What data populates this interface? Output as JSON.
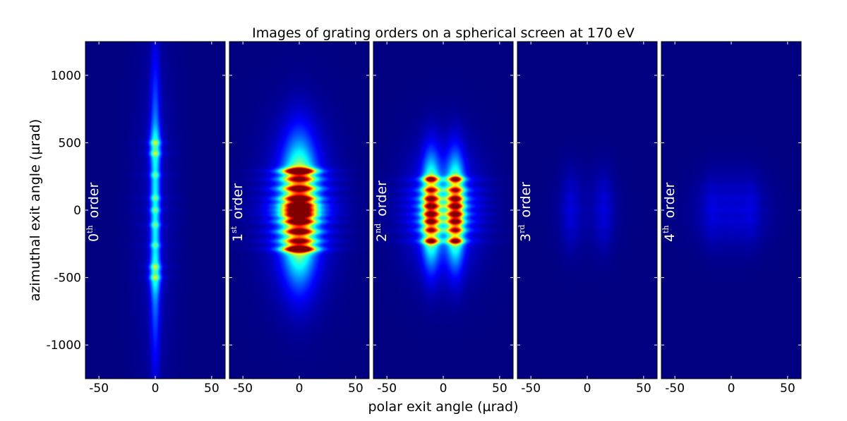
{
  "chart_data": {
    "type": "heatmap",
    "title": "Images of grating orders on a spherical screen at 170 eV",
    "xlabel": "polar exit angle (µrad)",
    "ylabel": "azimuthal exit angle (µrad)",
    "xlim": [
      -62,
      62
    ],
    "ylim": [
      -1250,
      1250
    ],
    "x_ticks": [
      "-50",
      "0",
      "50"
    ],
    "x_tick_values": [
      -50,
      0,
      50
    ],
    "y_ticks": [
      "1000",
      "500",
      "0",
      "-500",
      "-1000"
    ],
    "y_tick_values": [
      1000,
      500,
      0,
      -500,
      -1000
    ],
    "colormap": "jet",
    "background_color": "#00007f",
    "panels": [
      {
        "order_num": "0",
        "order_sup": "th",
        "order_word": "order",
        "spots": [
          {
            "x": 0,
            "y": 0,
            "wx": 3,
            "wy": 700,
            "v": 0.33
          },
          {
            "x": 0,
            "y": 480,
            "wx": 4,
            "wy": 90,
            "v": 0.14
          },
          {
            "x": 0,
            "y": -480,
            "wx": 4,
            "wy": 90,
            "v": 0.14
          },
          {
            "x": 0,
            "y": 0,
            "wx": 14,
            "wy": 900,
            "v": 0.05
          }
        ],
        "stripes_y": [
          -500,
          -420,
          -260,
          -110,
          0,
          90,
          260,
          420,
          500
        ],
        "stripe_v": 0.06
      },
      {
        "order_num": "1",
        "order_sup": "st",
        "order_word": "order",
        "spots": [
          {
            "x": 0,
            "y": 0,
            "wx": 9,
            "wy": 310,
            "v": 0.62
          },
          {
            "x": 0,
            "y": 0,
            "wx": 16,
            "wy": 360,
            "v": 0.18
          },
          {
            "x": 0,
            "y": 290,
            "wx": 9,
            "wy": 22,
            "v": 0.38
          },
          {
            "x": 0,
            "y": -290,
            "wx": 9,
            "wy": 22,
            "v": 0.38
          },
          {
            "x": 0,
            "y": 0,
            "wx": 28,
            "wy": 500,
            "v": 0.06
          }
        ],
        "stripes_y": [
          -290,
          -230,
          -160,
          -85,
          -35,
          0,
          35,
          85,
          160,
          230,
          290
        ],
        "stripe_v": 0.12
      },
      {
        "order_num": "2",
        "order_sup": "nd",
        "order_word": "order",
        "spots": [
          {
            "x": -11,
            "y": 0,
            "wx": 5,
            "wy": 250,
            "v": 0.56
          },
          {
            "x": 11,
            "y": 0,
            "wx": 5,
            "wy": 250,
            "v": 0.56
          },
          {
            "x": 0,
            "y": 0,
            "wx": 18,
            "wy": 280,
            "v": 0.2
          },
          {
            "x": -11,
            "y": 230,
            "wx": 4,
            "wy": 20,
            "v": 0.22
          },
          {
            "x": 11,
            "y": 230,
            "wx": 4,
            "wy": 20,
            "v": 0.22
          },
          {
            "x": -11,
            "y": -230,
            "wx": 4,
            "wy": 20,
            "v": 0.22
          },
          {
            "x": 11,
            "y": -230,
            "wx": 4,
            "wy": 20,
            "v": 0.22
          },
          {
            "x": 0,
            "y": 0,
            "wx": 30,
            "wy": 400,
            "v": 0.05
          }
        ],
        "stripes_y": [
          -230,
          -150,
          -85,
          -30,
          30,
          85,
          150,
          230
        ],
        "stripe_v": 0.1
      },
      {
        "order_num": "3",
        "order_sup": "rd",
        "order_word": "order",
        "spots": [
          {
            "x": -15,
            "y": 0,
            "wx": 6,
            "wy": 210,
            "v": 0.06
          },
          {
            "x": 15,
            "y": 0,
            "wx": 6,
            "wy": 210,
            "v": 0.06
          },
          {
            "x": 0,
            "y": 0,
            "wx": 20,
            "wy": 230,
            "v": 0.03
          }
        ],
        "stripes_y": [
          -200,
          -110,
          0,
          110,
          200
        ],
        "stripe_v": 0.02
      },
      {
        "order_num": "4",
        "order_sup": "th",
        "order_word": "order",
        "spots": [
          {
            "x": 0,
            "y": 0,
            "wx": 22,
            "wy": 200,
            "v": 0.08
          },
          {
            "x": -18,
            "y": 0,
            "wx": 5,
            "wy": 180,
            "v": 0.03
          },
          {
            "x": 18,
            "y": 0,
            "wx": 5,
            "wy": 180,
            "v": 0.03
          }
        ],
        "stripes_y": [
          -180,
          -90,
          0,
          90,
          180
        ],
        "stripe_v": 0.02
      }
    ]
  }
}
